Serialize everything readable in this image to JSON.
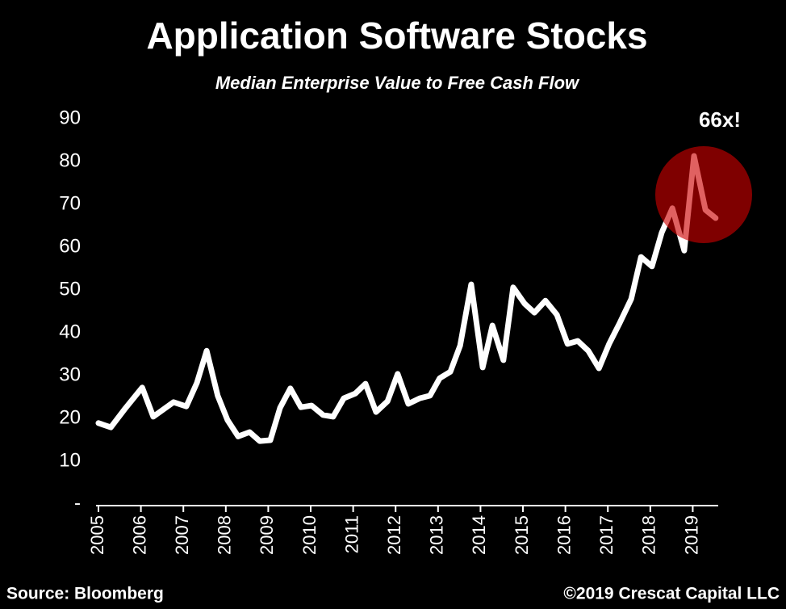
{
  "chart_data": {
    "type": "line",
    "title": "Application Software Stocks",
    "subtitle": "Median Enterprise Value to Free Cash Flow",
    "annotation": "66x!",
    "source": "Source: Bloomberg",
    "copyright": "©2019 Crescat Capital LLC",
    "color": "#ffffff",
    "grid": false,
    "x": [
      2005.0,
      2005.29,
      2005.63,
      2006.03,
      2006.29,
      2006.77,
      2007.07,
      2007.32,
      2007.55,
      2007.81,
      2008.04,
      2008.29,
      2008.56,
      2008.8,
      2009.05,
      2009.28,
      2009.52,
      2009.77,
      2010.02,
      2010.29,
      2010.53,
      2010.78,
      2011.05,
      2011.29,
      2011.54,
      2011.81,
      2012.05,
      2012.3,
      2012.57,
      2012.81,
      2013.04,
      2013.29,
      2013.52,
      2013.78,
      2014.05,
      2014.28,
      2014.54,
      2014.77,
      2015.04,
      2015.27,
      2015.53,
      2015.8,
      2016.05,
      2016.29,
      2016.54,
      2016.79,
      2017.03,
      2017.28,
      2017.55,
      2017.78,
      2018.04,
      2018.27,
      2018.52,
      2018.8,
      2019.03,
      2019.3,
      2019.54
    ],
    "values": [
      18.9,
      17.9,
      22.3,
      27.2,
      20.4,
      23.8,
      22.8,
      28.3,
      35.8,
      25.3,
      19.6,
      15.8,
      16.8,
      14.7,
      14.9,
      22.5,
      27.0,
      22.6,
      23.0,
      20.8,
      20.4,
      24.7,
      25.8,
      28.1,
      21.5,
      24.0,
      30.4,
      23.4,
      24.7,
      25.3,
      29.4,
      30.9,
      37.0,
      51.3,
      31.9,
      41.7,
      33.6,
      50.6,
      46.8,
      44.7,
      47.5,
      44.2,
      37.4,
      38.1,
      35.8,
      31.7,
      37.4,
      42.3,
      47.9,
      57.7,
      55.5,
      63.4,
      69.1,
      59.2,
      81.3,
      68.7,
      66.8
    ],
    "xlim": [
      2005,
      2019.6
    ],
    "xticks": [
      2005,
      2006,
      2007,
      2008,
      2009,
      2010,
      2011,
      2012,
      2013,
      2014,
      2015,
      2016,
      2017,
      2018,
      2019
    ],
    "ylim": [
      0,
      90
    ],
    "yticks": [
      {
        "value": 0,
        "label": "-"
      },
      10,
      20,
      30,
      40,
      50,
      60,
      70,
      80,
      90
    ]
  }
}
